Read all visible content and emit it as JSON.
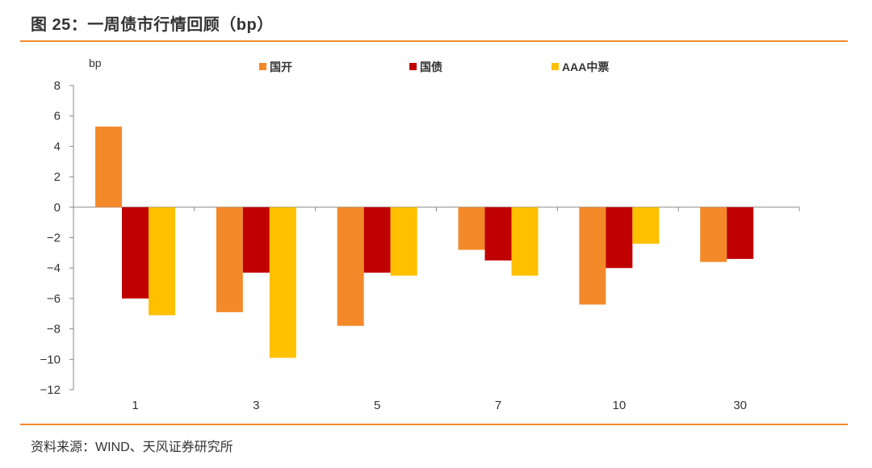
{
  "figure": {
    "title": "图 25：一周债市行情回顾（bp）",
    "source": "资料来源：WIND、天风证券研究所"
  },
  "colors": {
    "accent_rule": "#f08a2c",
    "series": [
      "#f4892a",
      "#c00000",
      "#ffc000"
    ]
  },
  "chart_data": {
    "type": "bar",
    "ylabel": "bp",
    "xlabel": "",
    "categories": [
      "1",
      "3",
      "5",
      "7",
      "10",
      "30"
    ],
    "series": [
      {
        "name": "国开",
        "values": [
          5.3,
          -6.9,
          -7.8,
          -2.8,
          -6.4,
          -3.6
        ]
      },
      {
        "name": "国债",
        "values": [
          -6.0,
          -4.3,
          -4.3,
          -3.5,
          -4.0,
          -3.4
        ]
      },
      {
        "name": "AAA中票",
        "values": [
          -7.1,
          -9.9,
          -4.5,
          -4.5,
          -2.4,
          null
        ]
      }
    ],
    "ylim": [
      -12,
      8
    ],
    "yticks": [
      8,
      6,
      4,
      2,
      0,
      -2,
      -4,
      -6,
      -8,
      -10,
      -12
    ],
    "grid": false,
    "legend_position": "top"
  }
}
